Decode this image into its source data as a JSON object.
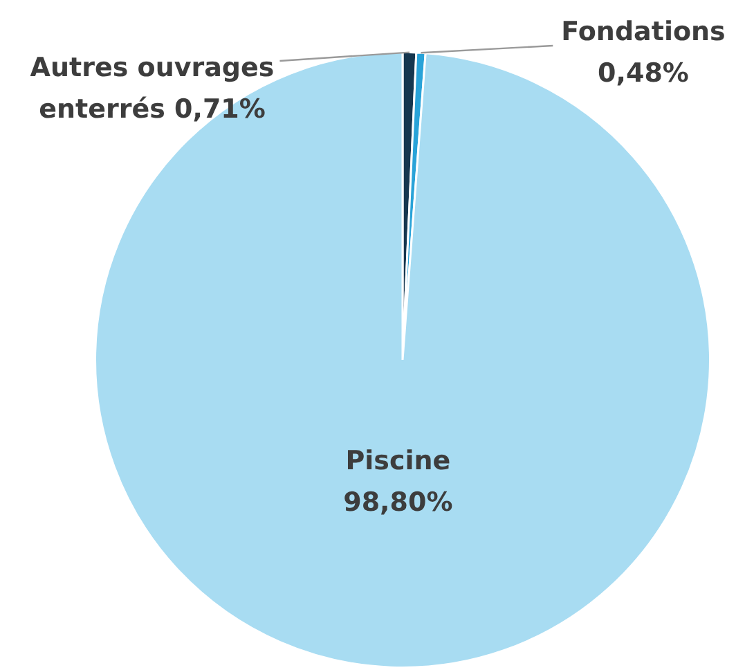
{
  "chart_data": {
    "type": "pie",
    "categories": [
      "Autres ouvrages enterrés",
      "Fondations",
      "Piscine"
    ],
    "values": [
      0.71,
      0.48,
      98.8
    ],
    "colors": [
      "#16374f",
      "#29a3d8",
      "#a8dcf2"
    ],
    "value_labels": [
      "0,71%",
      "0,48%",
      "98,80%"
    ]
  }
}
